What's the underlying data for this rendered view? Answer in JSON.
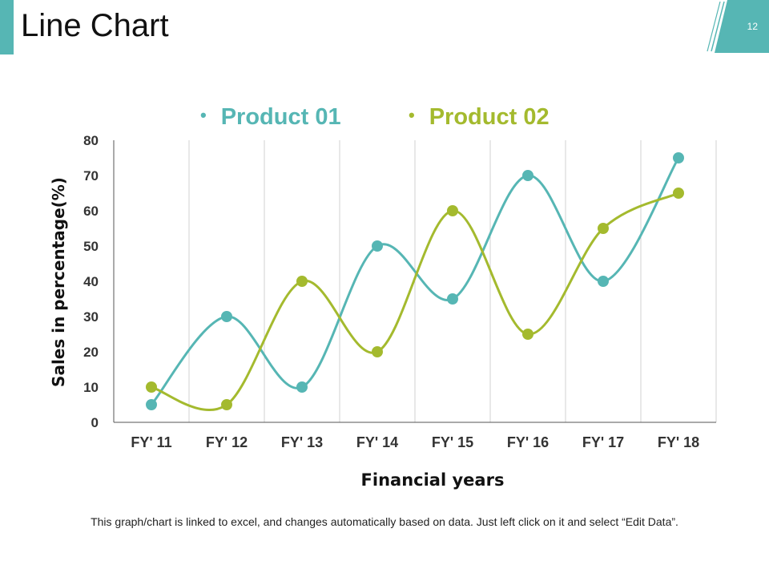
{
  "slide": {
    "title": "Line Chart",
    "number": "12",
    "footer": "This graph/chart is linked to excel, and changes automatically based on data. Just left click on it and select “Edit Data”."
  },
  "colors": {
    "accent": "#56b6b4",
    "product01": "#56b6b4",
    "product02": "#a4ba2e",
    "grid": "#d0d0d0",
    "axis": "#555555"
  },
  "chart_data": {
    "type": "line",
    "title": "",
    "xlabel": "Financial years",
    "ylabel": "Sales in percentage(%)",
    "categories": [
      "FY' 11",
      "FY' 12",
      "FY' 13",
      "FY' 14",
      "FY' 15",
      "FY' 16",
      "FY' 17",
      "FY' 18"
    ],
    "ylim": [
      0,
      80
    ],
    "yticks": [
      0,
      10,
      20,
      30,
      40,
      50,
      60,
      70,
      80
    ],
    "legend_position": "top",
    "series": [
      {
        "name": "Product 01",
        "color": "#56b6b4",
        "values": [
          5,
          30,
          10,
          50,
          35,
          70,
          40,
          75
        ]
      },
      {
        "name": "Product 02",
        "color": "#a4ba2e",
        "values": [
          10,
          5,
          40,
          20,
          60,
          25,
          55,
          65
        ]
      }
    ]
  }
}
